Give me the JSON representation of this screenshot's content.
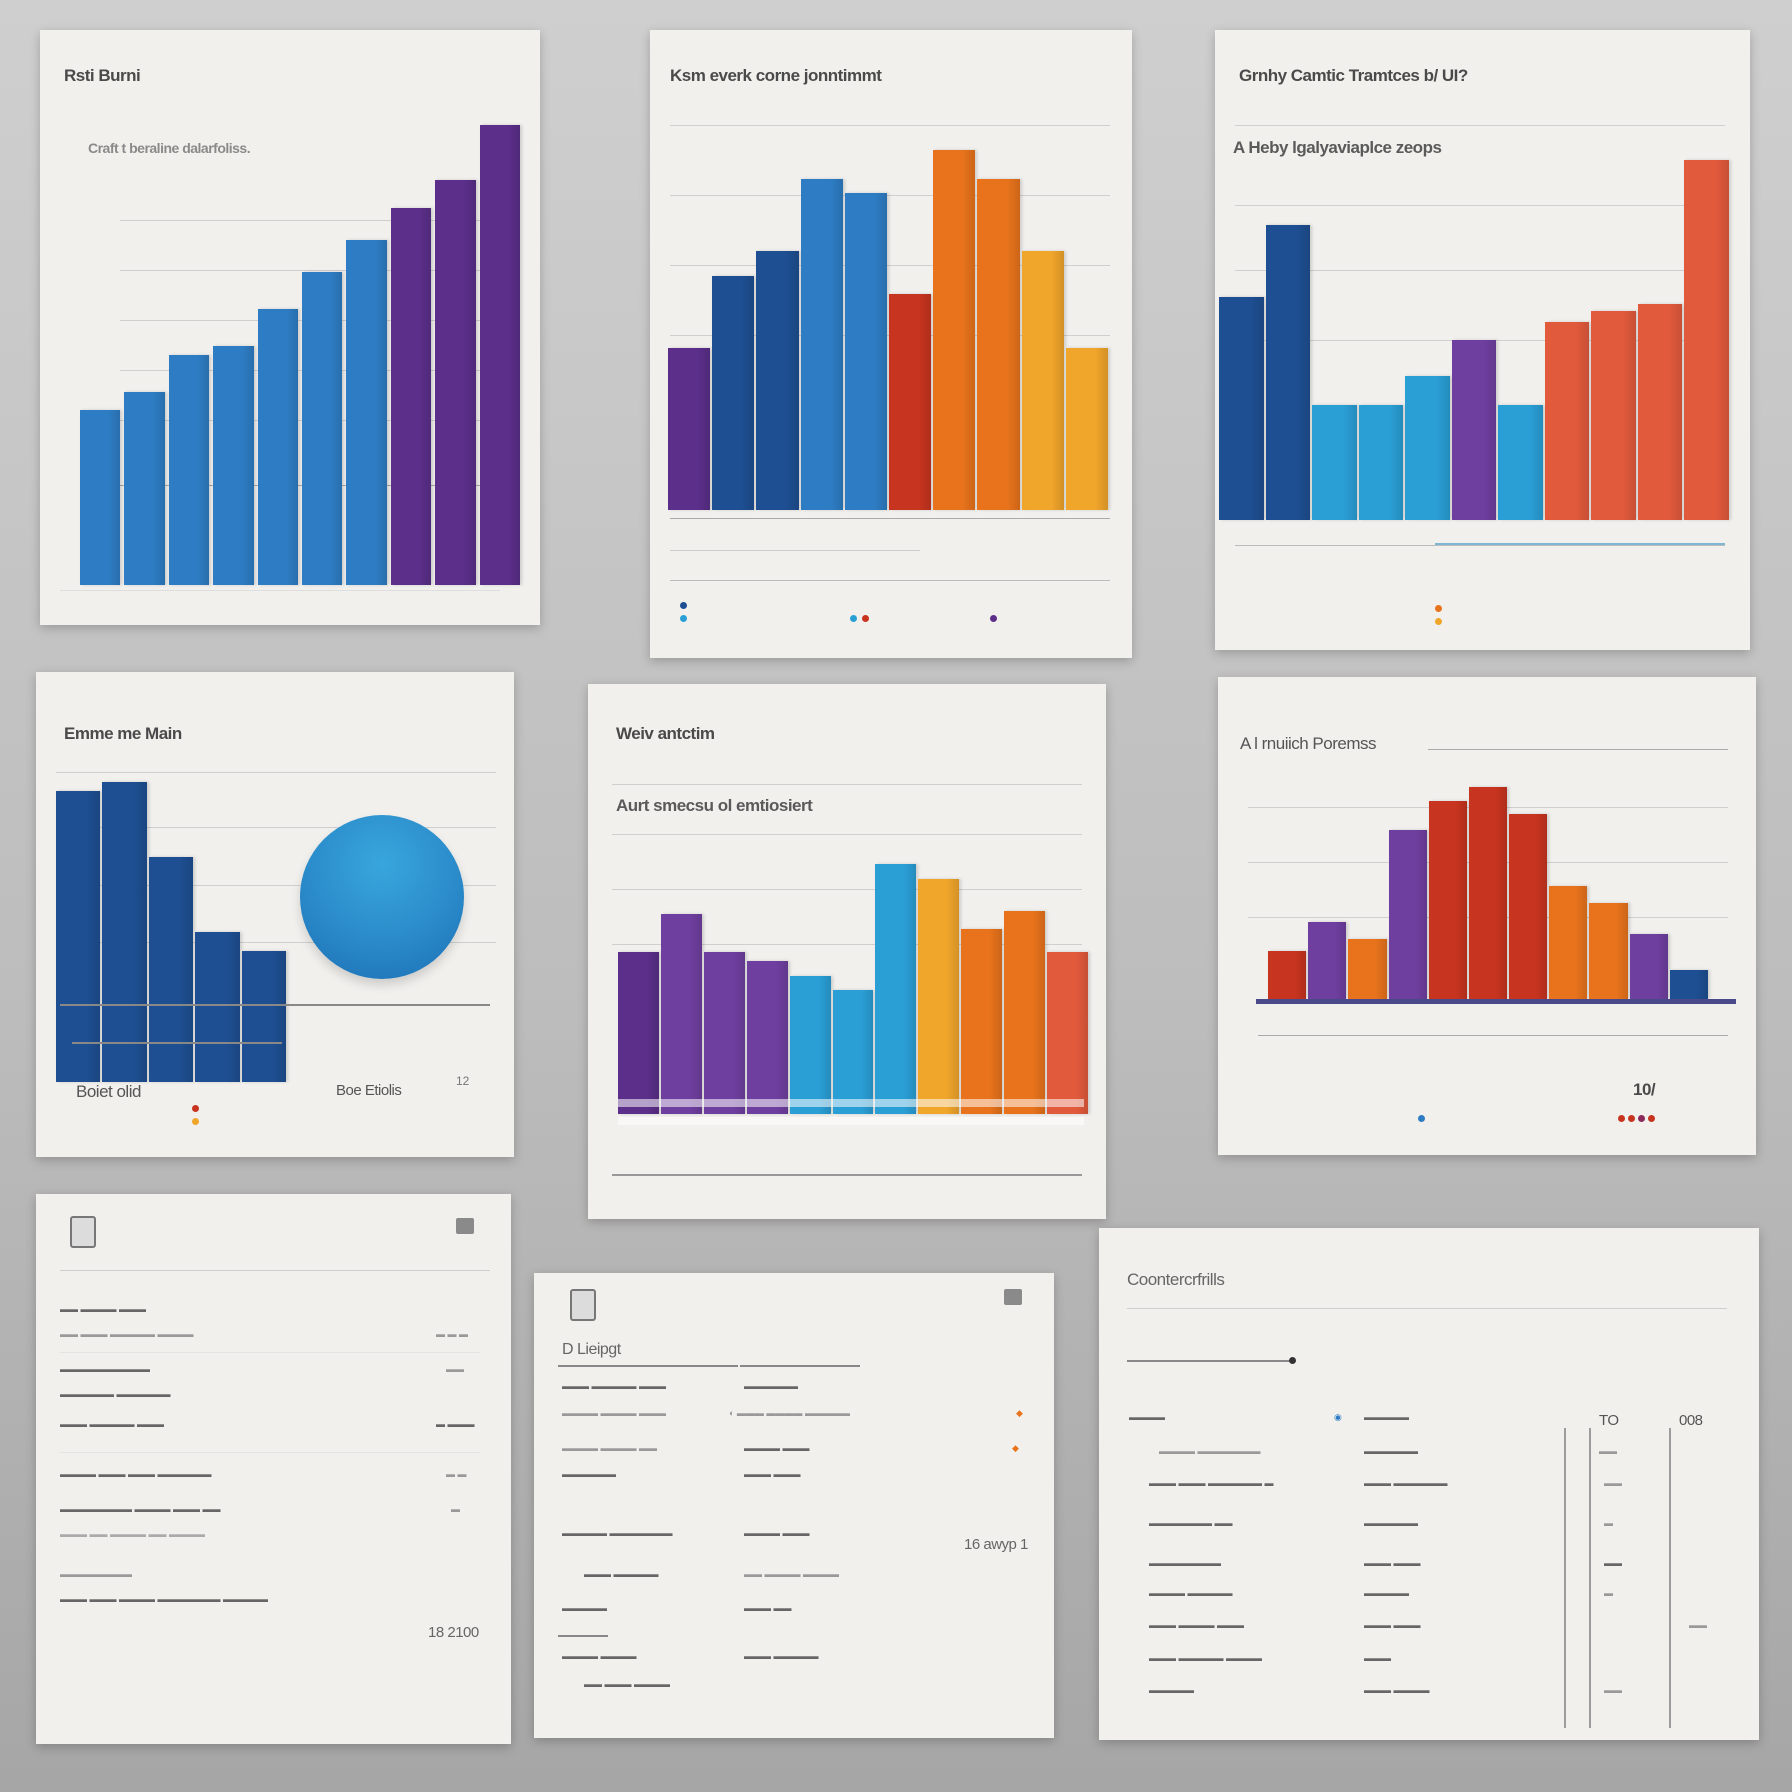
{
  "panels": {
    "p1": {
      "title": "Rsti Burni",
      "subtitle": "Craft t beraline dalarfoliss."
    },
    "p2": {
      "title": "Ksm everk corne jonntimmt"
    },
    "p3": {
      "title": "Grnhy Camtic Tramtces b/ UI?",
      "subtitle": "A Heby lgalyaviaplce zeops"
    },
    "p4": {
      "title": "Emme me Main",
      "legend_left": "Boiet olid",
      "legend_right": "Boe Etiolis",
      "legend_value": "12"
    },
    "p5": {
      "title": "Weiv antctim",
      "subtitle": "Aurt smecsu ol emtiosiert"
    },
    "p6": {
      "title": "A l rnuiich Poremss",
      "value": "10/"
    },
    "p7": {
      "value": "18 2100"
    },
    "p8": {
      "title": "D Lieipgt",
      "value": "16 awyp 1"
    },
    "p9": {
      "title": "Coontercrfrills",
      "col1": "TO",
      "col2": "008"
    }
  },
  "colors": {
    "blue": "#2e7dc4",
    "navy": "#1e4f92",
    "purple": "#5b2f8a",
    "violet": "#6f3fa0",
    "cyan": "#2a9fd6",
    "red": "#c7341f",
    "orange": "#e8731c",
    "amber": "#f0a52b",
    "coral": "#e25a3c"
  },
  "chart_data": [
    {
      "type": "bar",
      "panel": "p1",
      "title": "Rsti Burni",
      "values": [
        38,
        42,
        50,
        52,
        60,
        68,
        75,
        82,
        88,
        100
      ],
      "series_colors": [
        "blue",
        "blue",
        "blue",
        "blue",
        "blue",
        "blue",
        "blue",
        "purple",
        "purple",
        "purple"
      ]
    },
    {
      "type": "bar",
      "panel": "p2",
      "title": "Ksm everk corne jonntimmt",
      "values": [
        45,
        65,
        72,
        92,
        88,
        60,
        100,
        92,
        72,
        45
      ]
    },
    {
      "type": "bar",
      "panel": "p3",
      "title": "Grnhy Camtic Tramtces b/ UI?",
      "values": [
        62,
        82,
        32,
        32,
        40,
        50,
        32,
        55,
        58,
        60,
        100
      ]
    },
    {
      "type": "bar",
      "panel": "p4",
      "title": "Emme me Main",
      "values": [
        62,
        64,
        48,
        32,
        28
      ]
    },
    {
      "type": "bar",
      "panel": "p5",
      "title": "Weiv antctim",
      "values": [
        55,
        68,
        55,
        52,
        47,
        42,
        85,
        80,
        63,
        69,
        55
      ]
    },
    {
      "type": "bar",
      "panel": "p6",
      "title": "A l rnuiich Poremss",
      "values": [
        20,
        32,
        25,
        70,
        82,
        88,
        77,
        47,
        40,
        27,
        12
      ]
    }
  ]
}
